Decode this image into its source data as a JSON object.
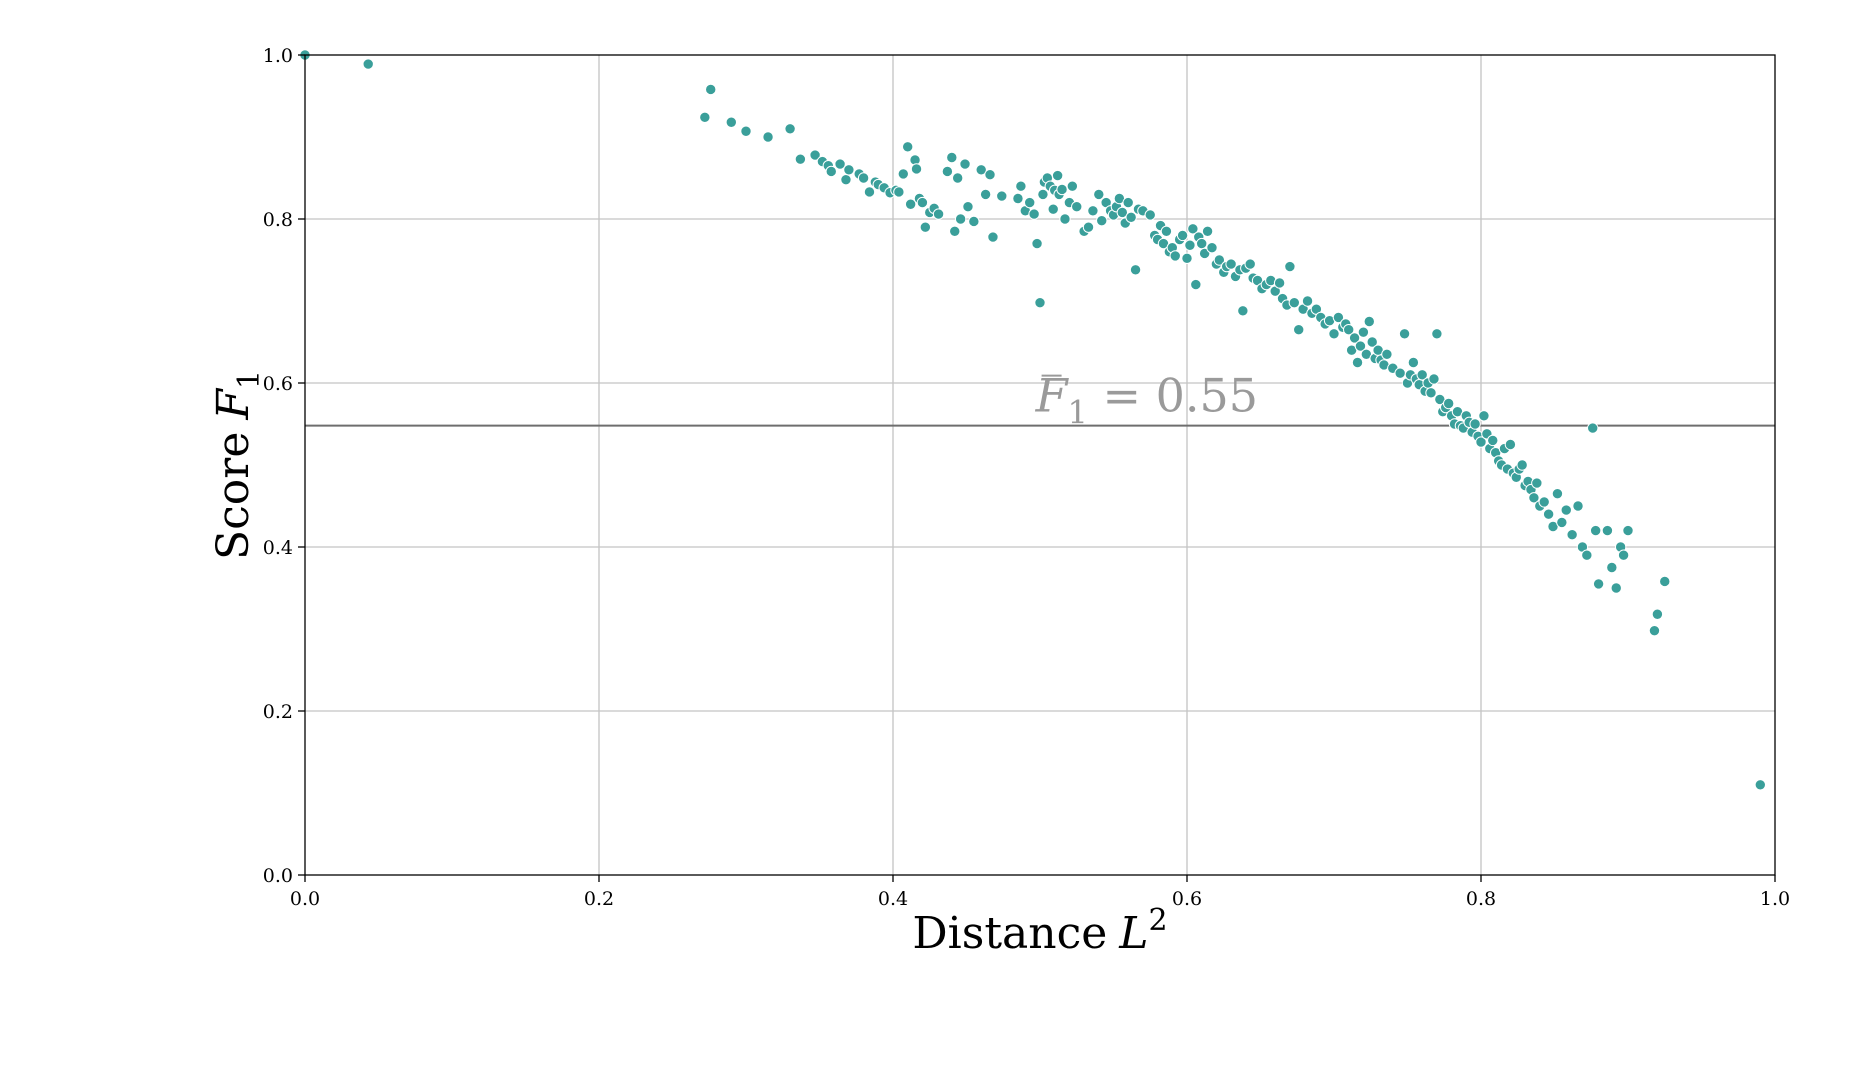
{
  "chart_data": {
    "type": "scatter",
    "title": "",
    "xlabel": {
      "text": "Distance",
      "math_base": "L",
      "math_sup": "2"
    },
    "ylabel": {
      "text": "Score",
      "math_base": "F",
      "math_sub": "1"
    },
    "xlim": [
      0.0,
      1.0
    ],
    "ylim": [
      0.0,
      1.0
    ],
    "xticks": [
      0.0,
      0.2,
      0.4,
      0.6,
      0.8,
      1.0
    ],
    "yticks": [
      0.0,
      0.2,
      0.4,
      0.6,
      0.8,
      1.0
    ],
    "xtick_labels": [
      "0.0",
      "0.2",
      "0.4",
      "0.6",
      "0.8",
      "1.0"
    ],
    "ytick_labels": [
      "0.0",
      "0.2",
      "0.4",
      "0.6",
      "0.8",
      "1.0"
    ],
    "grid": true,
    "point_color": "#3a9f9a",
    "mean_line": {
      "y": 0.548,
      "color": "#6e6e6e",
      "label_base": "F",
      "label_sub": "1",
      "label_value": " = 0.55",
      "label_color": "#9a9a9a"
    },
    "series": [
      {
        "x": [
          0.0,
          0.043,
          0.272,
          0.276,
          0.29,
          0.3,
          0.315,
          0.33,
          0.337,
          0.347,
          0.352,
          0.356,
          0.358,
          0.364,
          0.368,
          0.37,
          0.377,
          0.38,
          0.384,
          0.388,
          0.39,
          0.394,
          0.398,
          0.402,
          0.404,
          0.407,
          0.41,
          0.412,
          0.415,
          0.416,
          0.418,
          0.42,
          0.422,
          0.425,
          0.428,
          0.431,
          0.437,
          0.44,
          0.442,
          0.444,
          0.446,
          0.449,
          0.451,
          0.455,
          0.46,
          0.463,
          0.466,
          0.468,
          0.474,
          0.485,
          0.487,
          0.49,
          0.493,
          0.496,
          0.498,
          0.5,
          0.502,
          0.503,
          0.505,
          0.507,
          0.509,
          0.51,
          0.512,
          0.513,
          0.515,
          0.517,
          0.52,
          0.522,
          0.525,
          0.53,
          0.533,
          0.536,
          0.54,
          0.542,
          0.545,
          0.548,
          0.55,
          0.552,
          0.554,
          0.556,
          0.558,
          0.56,
          0.562,
          0.565,
          0.567,
          0.57,
          0.575,
          0.578,
          0.58,
          0.582,
          0.584,
          0.586,
          0.588,
          0.59,
          0.592,
          0.595,
          0.597,
          0.6,
          0.602,
          0.604,
          0.606,
          0.608,
          0.61,
          0.612,
          0.614,
          0.617,
          0.62,
          0.622,
          0.625,
          0.627,
          0.63,
          0.633,
          0.636,
          0.638,
          0.64,
          0.643,
          0.645,
          0.648,
          0.651,
          0.654,
          0.657,
          0.66,
          0.663,
          0.665,
          0.668,
          0.67,
          0.673,
          0.676,
          0.679,
          0.682,
          0.685,
          0.688,
          0.691,
          0.694,
          0.697,
          0.7,
          0.703,
          0.706,
          0.708,
          0.71,
          0.712,
          0.714,
          0.716,
          0.718,
          0.72,
          0.722,
          0.724,
          0.726,
          0.728,
          0.73,
          0.732,
          0.734,
          0.736,
          0.74,
          0.745,
          0.748,
          0.75,
          0.752,
          0.754,
          0.756,
          0.758,
          0.76,
          0.762,
          0.764,
          0.766,
          0.768,
          0.77,
          0.772,
          0.774,
          0.776,
          0.778,
          0.78,
          0.782,
          0.784,
          0.786,
          0.788,
          0.79,
          0.792,
          0.794,
          0.796,
          0.798,
          0.8,
          0.802,
          0.804,
          0.806,
          0.808,
          0.81,
          0.812,
          0.814,
          0.816,
          0.818,
          0.82,
          0.822,
          0.824,
          0.826,
          0.828,
          0.83,
          0.832,
          0.834,
          0.836,
          0.838,
          0.84,
          0.843,
          0.846,
          0.849,
          0.852,
          0.855,
          0.858,
          0.862,
          0.866,
          0.869,
          0.872,
          0.876,
          0.878,
          0.88,
          0.886,
          0.889,
          0.892,
          0.895,
          0.897,
          0.9,
          0.925,
          0.92,
          0.918,
          0.99
        ],
        "y": [
          1.0,
          0.989,
          0.924,
          0.958,
          0.918,
          0.907,
          0.9,
          0.91,
          0.873,
          0.878,
          0.87,
          0.865,
          0.858,
          0.867,
          0.848,
          0.86,
          0.855,
          0.85,
          0.833,
          0.845,
          0.842,
          0.838,
          0.832,
          0.835,
          0.833,
          0.855,
          0.888,
          0.818,
          0.872,
          0.861,
          0.825,
          0.82,
          0.79,
          0.808,
          0.813,
          0.806,
          0.858,
          0.875,
          0.785,
          0.85,
          0.8,
          0.867,
          0.815,
          0.797,
          0.86,
          0.83,
          0.854,
          0.778,
          0.828,
          0.825,
          0.84,
          0.81,
          0.82,
          0.806,
          0.77,
          0.698,
          0.83,
          0.845,
          0.85,
          0.84,
          0.812,
          0.835,
          0.853,
          0.83,
          0.836,
          0.8,
          0.82,
          0.84,
          0.815,
          0.785,
          0.79,
          0.81,
          0.83,
          0.798,
          0.82,
          0.81,
          0.805,
          0.815,
          0.825,
          0.808,
          0.795,
          0.82,
          0.802,
          0.738,
          0.812,
          0.81,
          0.805,
          0.78,
          0.775,
          0.792,
          0.77,
          0.785,
          0.76,
          0.765,
          0.755,
          0.775,
          0.78,
          0.752,
          0.768,
          0.788,
          0.72,
          0.778,
          0.77,
          0.758,
          0.785,
          0.765,
          0.745,
          0.75,
          0.735,
          0.742,
          0.745,
          0.73,
          0.738,
          0.688,
          0.74,
          0.745,
          0.728,
          0.725,
          0.715,
          0.72,
          0.725,
          0.712,
          0.722,
          0.703,
          0.695,
          0.742,
          0.698,
          0.665,
          0.69,
          0.7,
          0.685,
          0.69,
          0.68,
          0.672,
          0.676,
          0.66,
          0.68,
          0.668,
          0.672,
          0.665,
          0.64,
          0.655,
          0.625,
          0.645,
          0.662,
          0.635,
          0.675,
          0.65,
          0.63,
          0.64,
          0.628,
          0.622,
          0.635,
          0.618,
          0.612,
          0.66,
          0.6,
          0.61,
          0.625,
          0.605,
          0.598,
          0.61,
          0.59,
          0.6,
          0.588,
          0.605,
          0.66,
          0.58,
          0.565,
          0.57,
          0.575,
          0.56,
          0.55,
          0.565,
          0.548,
          0.545,
          0.56,
          0.552,
          0.54,
          0.55,
          0.535,
          0.528,
          0.56,
          0.538,
          0.52,
          0.53,
          0.515,
          0.505,
          0.5,
          0.52,
          0.495,
          0.525,
          0.49,
          0.485,
          0.495,
          0.5,
          0.475,
          0.48,
          0.47,
          0.46,
          0.478,
          0.45,
          0.455,
          0.44,
          0.425,
          0.465,
          0.43,
          0.445,
          0.415,
          0.45,
          0.4,
          0.39,
          0.545,
          0.42,
          0.355,
          0.42,
          0.375,
          0.35,
          0.4,
          0.39,
          0.42,
          0.358,
          0.318,
          0.298,
          0.11
        ]
      }
    ]
  }
}
